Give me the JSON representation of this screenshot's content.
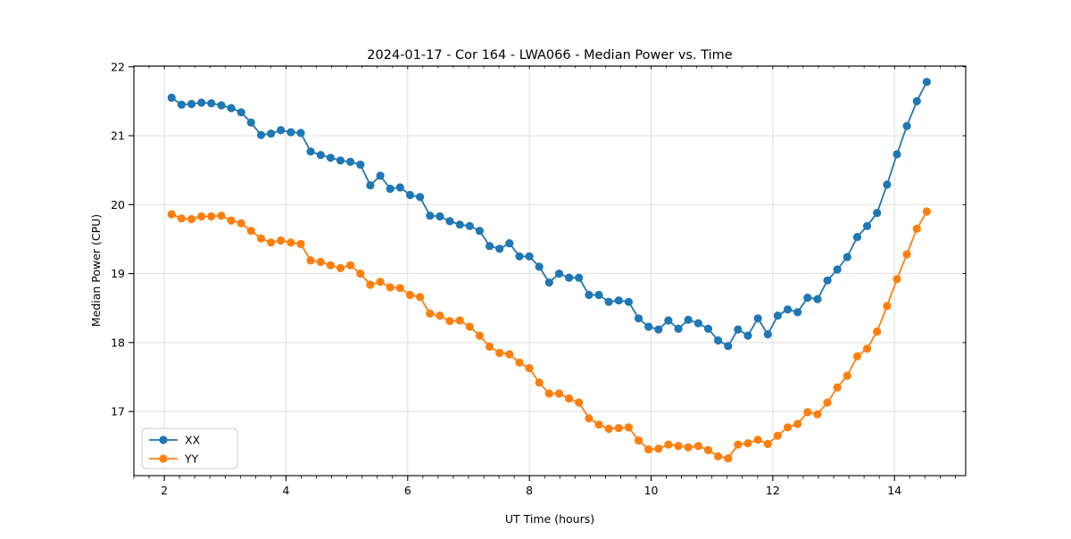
{
  "chart_data": {
    "type": "line",
    "title": "2024-01-17 - Cor 164 - LWA066 - Median Power vs. Time",
    "xlabel": "UT Time (hours)",
    "ylabel": "Median Power (CPU)",
    "xlim": [
      1.5,
      15.17
    ],
    "ylim": [
      16.07,
      22.01
    ],
    "x_ticks": [
      2,
      4,
      6,
      8,
      10,
      12,
      14
    ],
    "y_ticks": [
      17,
      18,
      19,
      20,
      21,
      22
    ],
    "x_minor_step": 0.25,
    "grid": true,
    "legend_position": "lower left",
    "background": "#ffffff",
    "grid_color": "#dcdcdc",
    "x": [
      2.12,
      2.283,
      2.447,
      2.61,
      2.773,
      2.937,
      3.1,
      3.263,
      3.426,
      3.59,
      3.753,
      3.916,
      4.08,
      4.243,
      4.406,
      4.57,
      4.733,
      4.896,
      5.059,
      5.223,
      5.386,
      5.549,
      5.713,
      5.876,
      6.039,
      6.203,
      6.366,
      6.529,
      6.692,
      6.856,
      7.019,
      7.182,
      7.346,
      7.509,
      7.672,
      7.836,
      7.999,
      8.162,
      8.325,
      8.489,
      8.652,
      8.815,
      8.979,
      9.142,
      9.305,
      9.469,
      9.632,
      9.795,
      9.958,
      10.122,
      10.285,
      10.448,
      10.612,
      10.775,
      10.938,
      11.102,
      11.265,
      11.428,
      11.591,
      11.755,
      11.918,
      12.081,
      12.245,
      12.408,
      12.571,
      12.735,
      12.898,
      13.061,
      13.224,
      13.388,
      13.551,
      13.714,
      13.878,
      14.041,
      14.204,
      14.367,
      14.531
    ],
    "series": [
      {
        "name": "XX",
        "color": "#1f77b4",
        "marker": "circle",
        "values": [
          21.55,
          21.45,
          21.46,
          21.48,
          21.47,
          21.44,
          21.4,
          21.34,
          21.19,
          21.01,
          21.03,
          21.08,
          21.05,
          21.04,
          20.77,
          20.72,
          20.68,
          20.64,
          20.62,
          20.58,
          20.28,
          20.42,
          20.23,
          20.25,
          20.14,
          20.11,
          19.84,
          19.83,
          19.76,
          19.71,
          19.69,
          19.62,
          19.4,
          19.36,
          19.44,
          19.25,
          19.25,
          19.1,
          18.87,
          19.0,
          18.94,
          18.94,
          18.69,
          18.69,
          18.59,
          18.61,
          18.59,
          18.35,
          18.23,
          18.19,
          18.32,
          18.2,
          18.33,
          18.28,
          18.2,
          18.03,
          17.95,
          18.19,
          18.1,
          18.35,
          18.12,
          18.39,
          18.48,
          18.44,
          18.65,
          18.63,
          18.9,
          19.06,
          19.24,
          19.53,
          19.69,
          19.88,
          20.29,
          20.73,
          21.14,
          21.5,
          21.78
        ]
      },
      {
        "name": "YY",
        "color": "#ff7f0e",
        "marker": "circle",
        "values": [
          19.86,
          19.8,
          19.79,
          19.83,
          19.83,
          19.84,
          19.77,
          19.73,
          19.62,
          19.51,
          19.45,
          19.48,
          19.45,
          19.43,
          19.19,
          19.17,
          19.12,
          19.08,
          19.12,
          19.0,
          18.84,
          18.88,
          18.8,
          18.79,
          18.69,
          18.66,
          18.42,
          18.39,
          18.31,
          18.32,
          18.23,
          18.1,
          17.94,
          17.85,
          17.83,
          17.71,
          17.63,
          17.42,
          17.26,
          17.26,
          17.19,
          17.13,
          16.9,
          16.81,
          16.75,
          16.76,
          16.77,
          16.58,
          16.45,
          16.46,
          16.52,
          16.5,
          16.48,
          16.5,
          16.44,
          16.35,
          16.32,
          16.52,
          16.54,
          16.59,
          16.53,
          16.65,
          16.77,
          16.82,
          16.99,
          16.96,
          17.13,
          17.35,
          17.52,
          17.8,
          17.91,
          18.16,
          18.53,
          18.92,
          19.28,
          19.65,
          19.9
        ]
      }
    ]
  }
}
